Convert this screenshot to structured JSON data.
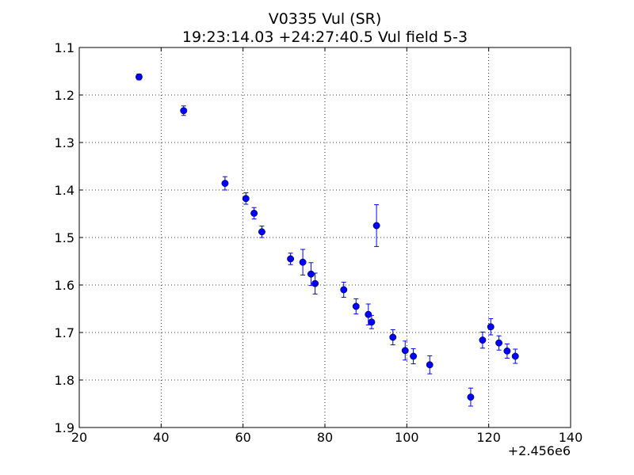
{
  "chart_data": {
    "type": "scatter",
    "title": "V0335 Vul (SR)",
    "subtitle": "19:23:14.03 +24:27:40.5 Vul field 5-3",
    "xlabel": "",
    "ylabel": "",
    "x_offset_label": "+2.456e6",
    "xlim": [
      20,
      140
    ],
    "ylim": [
      1.1,
      1.9
    ],
    "y_inverted": true,
    "x_ticks": [
      20,
      40,
      60,
      80,
      100,
      120,
      140
    ],
    "x_tick_labels": [
      "20",
      "40",
      "60",
      "80",
      "100",
      "120",
      "140"
    ],
    "y_ticks": [
      1.1,
      1.2,
      1.3,
      1.4,
      1.5,
      1.6,
      1.7,
      1.8,
      1.9
    ],
    "y_tick_labels": [
      "1.1",
      "1.2",
      "1.3",
      "1.4",
      "1.5",
      "1.6",
      "1.7",
      "1.8",
      "1.9"
    ],
    "grid": true,
    "marker_color": "#0000ff",
    "points": [
      {
        "x": 34.6,
        "y": 1.162,
        "err": 0.006
      },
      {
        "x": 45.5,
        "y": 1.233,
        "err": 0.01
      },
      {
        "x": 55.6,
        "y": 1.386,
        "err": 0.014
      },
      {
        "x": 60.7,
        "y": 1.418,
        "err": 0.012
      },
      {
        "x": 62.7,
        "y": 1.449,
        "err": 0.012
      },
      {
        "x": 64.6,
        "y": 1.488,
        "err": 0.012
      },
      {
        "x": 71.6,
        "y": 1.545,
        "err": 0.012
      },
      {
        "x": 74.6,
        "y": 1.552,
        "err": 0.027
      },
      {
        "x": 76.6,
        "y": 1.577,
        "err": 0.024
      },
      {
        "x": 77.6,
        "y": 1.597,
        "err": 0.022
      },
      {
        "x": 84.6,
        "y": 1.61,
        "err": 0.016
      },
      {
        "x": 87.6,
        "y": 1.645,
        "err": 0.016
      },
      {
        "x": 90.6,
        "y": 1.662,
        "err": 0.022
      },
      {
        "x": 91.4,
        "y": 1.678,
        "err": 0.014
      },
      {
        "x": 92.6,
        "y": 1.475,
        "err": 0.044
      },
      {
        "x": 96.6,
        "y": 1.71,
        "err": 0.016
      },
      {
        "x": 99.6,
        "y": 1.738,
        "err": 0.02
      },
      {
        "x": 101.6,
        "y": 1.75,
        "err": 0.016
      },
      {
        "x": 105.6,
        "y": 1.768,
        "err": 0.019
      },
      {
        "x": 115.6,
        "y": 1.836,
        "err": 0.019
      },
      {
        "x": 118.5,
        "y": 1.716,
        "err": 0.017
      },
      {
        "x": 120.5,
        "y": 1.688,
        "err": 0.017
      },
      {
        "x": 122.5,
        "y": 1.722,
        "err": 0.015
      },
      {
        "x": 124.5,
        "y": 1.739,
        "err": 0.015
      },
      {
        "x": 126.5,
        "y": 1.75,
        "err": 0.015
      }
    ]
  }
}
